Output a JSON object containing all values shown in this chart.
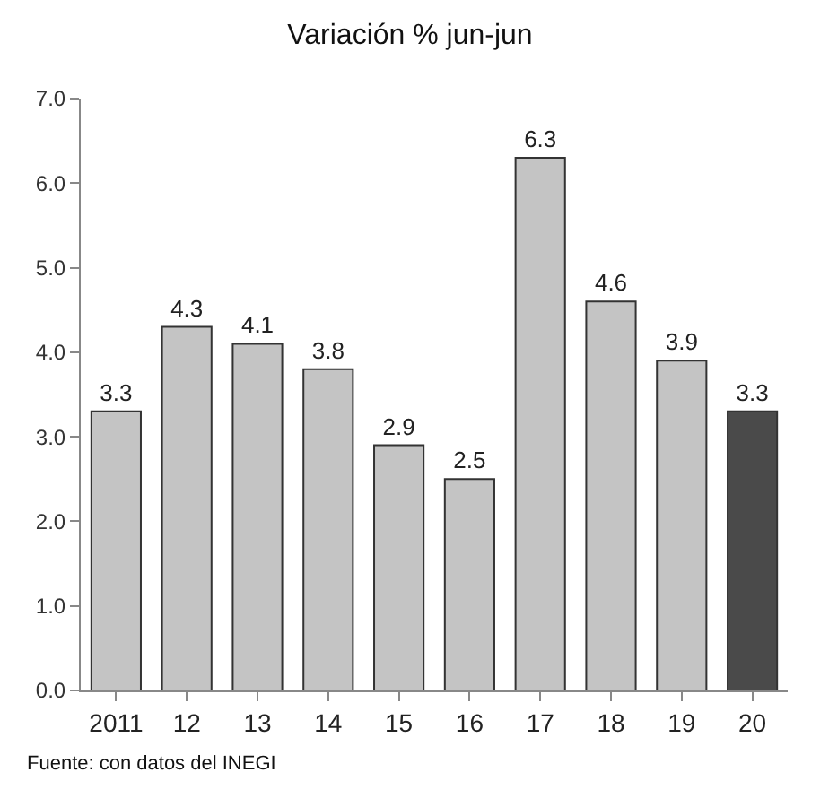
{
  "chart_data": {
    "type": "bar",
    "title": "Variación % jun-jun",
    "categories": [
      "2011",
      "12",
      "13",
      "14",
      "15",
      "16",
      "17",
      "18",
      "19",
      "20"
    ],
    "values": [
      3.3,
      4.3,
      4.1,
      3.8,
      2.9,
      2.5,
      6.3,
      4.6,
      3.9,
      3.3
    ],
    "colors": [
      "#c4c4c4",
      "#c4c4c4",
      "#c4c4c4",
      "#c4c4c4",
      "#c4c4c4",
      "#c4c4c4",
      "#c4c4c4",
      "#c4c4c4",
      "#c4c4c4",
      "#4a4a4a"
    ],
    "ylim": [
      0,
      7
    ],
    "yticks": [
      {
        "value": 0,
        "label": "0.0"
      },
      {
        "value": 1,
        "label": "1.0"
      },
      {
        "value": 2,
        "label": "2.0"
      },
      {
        "value": 3,
        "label": "3.0"
      },
      {
        "value": 4,
        "label": "4.0"
      },
      {
        "value": 5,
        "label": "5.0"
      },
      {
        "value": 6,
        "label": "6.0"
      },
      {
        "value": 7,
        "label": "7.0"
      }
    ],
    "data_labels": true,
    "grid": false,
    "annotations": [
      "Fuente: con datos del INEGI"
    ]
  }
}
